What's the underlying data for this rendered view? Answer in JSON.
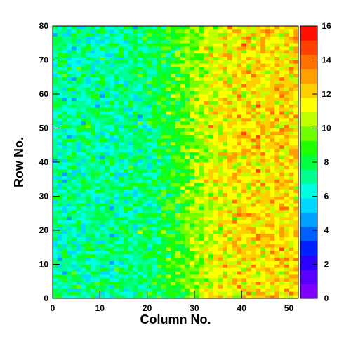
{
  "chart_data": {
    "type": "heatmap",
    "title": "",
    "xlabel": "Column No.",
    "ylabel": "Row No.",
    "xlim": [
      0,
      52
    ],
    "ylim": [
      0,
      80
    ],
    "x_ticks": [
      0,
      10,
      20,
      30,
      40,
      50
    ],
    "y_ticks": [
      0,
      10,
      20,
      30,
      40,
      50,
      60,
      70,
      80
    ],
    "n_columns": 52,
    "n_rows": 80,
    "z_range": [
      0,
      16
    ],
    "z_ticks": [
      0,
      2,
      4,
      6,
      8,
      10,
      12,
      14,
      16
    ],
    "palette": [
      "#8000ff",
      "#5a00ff",
      "#2a00ff",
      "#0020ff",
      "#0060ff",
      "#00a0ff",
      "#00d8ff",
      "#00ffe0",
      "#00ff90",
      "#00ff40",
      "#20ff00",
      "#70ff00",
      "#c0ff00",
      "#ffff00",
      "#ffd000",
      "#ffa000",
      "#ff7000",
      "#ff4000",
      "#ff1000"
    ],
    "grid": false,
    "colorbar": "right",
    "pattern": "per-pixel counts rise from about 7 on the left (columns 0–25) to about 11–13 on the right (columns 30–52); individual pixels vary roughly ±3 around the trend"
  },
  "axes": {
    "x_ticks": [
      "0",
      "10",
      "20",
      "30",
      "40",
      "50"
    ],
    "y_ticks": [
      "0",
      "10",
      "20",
      "30",
      "40",
      "50",
      "60",
      "70",
      "80"
    ],
    "z_ticks": [
      "0",
      "2",
      "4",
      "6",
      "8",
      "10",
      "12",
      "14",
      "16"
    ]
  }
}
